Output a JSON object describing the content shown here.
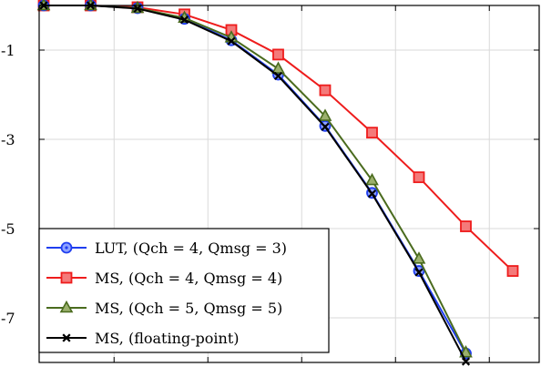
{
  "chart_data": {
    "type": "line",
    "x": [
      0,
      1,
      2,
      3,
      4,
      5,
      6,
      7,
      8,
      9,
      10
    ],
    "xlim": [
      0,
      10.4
    ],
    "ylim": [
      -8,
      0
    ],
    "yscale": "log",
    "ytick_values": [
      -1,
      -3,
      -5,
      -7
    ],
    "ytick_labels": [
      "-1",
      "-3",
      "-5",
      "-7"
    ],
    "xgrid_values": [
      1.5,
      3.5,
      5.5,
      7.5,
      9.5
    ],
    "grid": true,
    "legend_position": "bottom-left",
    "series": [
      {
        "name": "LUT, (Q_ch = 4, Q_msg = 3)",
        "legend_plain": "LUT,",
        "legend_math": "(Qch = 4, Qmsg = 3)",
        "color": "#1f3ef0",
        "marker": "circle-dot",
        "x": [
          0,
          1,
          2,
          3,
          4,
          5,
          6,
          7,
          8,
          9
        ],
        "values": [
          0,
          0,
          -0.06,
          -0.3,
          -0.78,
          -1.55,
          -2.7,
          -4.2,
          -5.95,
          -7.8
        ]
      },
      {
        "name": "MS, (Q_ch = 4, Q_msg = 4)",
        "legend_plain": "MS,",
        "legend_math": "(Qch = 4, Qmsg = 4)",
        "color": "#ee1c1c",
        "marker": "square",
        "x": [
          0,
          1,
          2,
          3,
          4,
          5,
          6,
          7,
          8,
          9,
          10
        ],
        "values": [
          0,
          0,
          -0.04,
          -0.2,
          -0.55,
          -1.1,
          -1.9,
          -2.85,
          -3.85,
          -4.95,
          -5.95
        ]
      },
      {
        "name": "MS, (Q_ch = 5, Q_msg = 5)",
        "legend_plain": "MS,",
        "legend_math": "(Qch = 5, Qmsg = 5)",
        "color": "#4a6b1e",
        "marker": "triangle",
        "x": [
          0,
          1,
          2,
          3,
          4,
          5,
          6,
          7,
          8,
          9
        ],
        "values": [
          0,
          0,
          -0.06,
          -0.28,
          -0.72,
          -1.42,
          -2.48,
          -3.92,
          -5.68,
          -7.78
        ]
      },
      {
        "name": "MS, (floating-point)",
        "legend_plain": "MS, (floating-point)",
        "legend_math": "",
        "color": "#000000",
        "marker": "x",
        "x": [
          0,
          1,
          2,
          3,
          4,
          5,
          6,
          7,
          8,
          9
        ],
        "values": [
          0,
          0,
          -0.07,
          -0.32,
          -0.8,
          -1.58,
          -2.72,
          -4.22,
          -5.98,
          -7.98
        ]
      }
    ]
  }
}
